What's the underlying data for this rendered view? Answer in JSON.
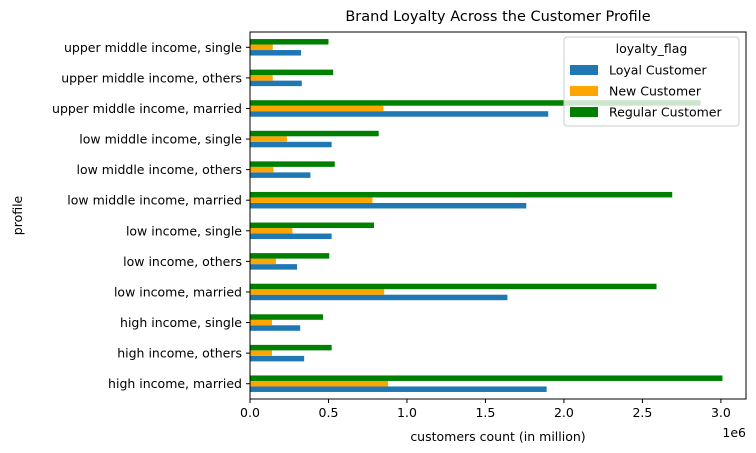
{
  "chart_data": {
    "type": "bar",
    "orientation": "horizontal",
    "title": "Brand Loyalty Across the Customer Profile",
    "xlabel": "customers count (in million)",
    "ylabel": "profile",
    "x_offset_label": "1e6",
    "xlim": [
      0,
      3160000
    ],
    "xticks": [
      0,
      500000,
      1000000,
      1500000,
      2000000,
      2500000,
      3000000
    ],
    "xtick_labels": [
      "0.0",
      "0.5",
      "1.0",
      "1.5",
      "2.0",
      "2.5",
      "3.0"
    ],
    "grid": false,
    "legend": {
      "title": "loyalty_flag",
      "placement": "upper right"
    },
    "categories": [
      "high income, married",
      "high income, others",
      "high income, single",
      "low income, married",
      "low income, others",
      "low income, single",
      "low middle income, married",
      "low middle income, others",
      "low middle income, single",
      "upper middle income, married",
      "upper middle income, others",
      "upper middle income, single"
    ],
    "series": [
      {
        "name": "Loyal Customer",
        "color": "#1f77b4",
        "values": [
          1890000,
          345000,
          320000,
          1640000,
          300000,
          520000,
          1760000,
          385000,
          520000,
          1900000,
          330000,
          325000
        ]
      },
      {
        "name": "New Customer",
        "color": "#ffa500",
        "values": [
          880000,
          140000,
          140000,
          855000,
          165000,
          270000,
          780000,
          150000,
          235000,
          850000,
          145000,
          145000
        ]
      },
      {
        "name": "Regular Customer",
        "color": "#008000",
        "values": [
          3010000,
          520000,
          465000,
          2590000,
          505000,
          790000,
          2690000,
          540000,
          820000,
          2870000,
          530000,
          500000
        ]
      }
    ]
  }
}
